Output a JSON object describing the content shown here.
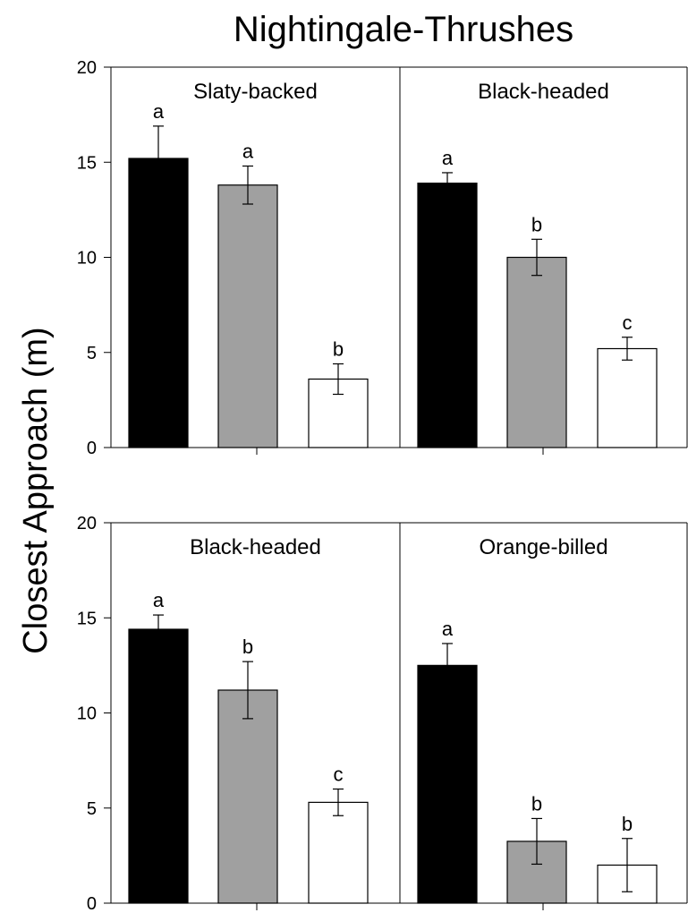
{
  "chart_data": {
    "type": "bar",
    "title": "Nightingale-Thrushes",
    "ylabel": "Closest Approach (m)",
    "ylim": [
      0,
      20
    ],
    "yticks": [
      "0",
      "5",
      "10",
      "15",
      "20"
    ],
    "colors": [
      "#000000",
      "#a0a0a0",
      "#ffffff"
    ],
    "rows": [
      {
        "panels": [
          {
            "title": "Slaty-backed",
            "values": [
              15.2,
              13.8,
              3.6
            ],
            "errors": [
              1.7,
              1.0,
              0.8
            ],
            "letters": [
              "a",
              "a",
              "b"
            ]
          },
          {
            "title": "Black-headed",
            "values": [
              13.9,
              10.0,
              5.2
            ],
            "errors": [
              0.55,
              0.95,
              0.6
            ],
            "letters": [
              "a",
              "b",
              "c"
            ]
          }
        ]
      },
      {
        "panels": [
          {
            "title": "Black-headed",
            "values": [
              14.4,
              11.2,
              5.3
            ],
            "errors": [
              0.75,
              1.5,
              0.7
            ],
            "letters": [
              "a",
              "b",
              "c"
            ]
          },
          {
            "title": "Orange-billed",
            "values": [
              12.5,
              3.25,
              2.0
            ],
            "errors": [
              1.15,
              1.2,
              1.4
            ],
            "letters": [
              "a",
              "b",
              "b"
            ]
          }
        ]
      }
    ]
  }
}
